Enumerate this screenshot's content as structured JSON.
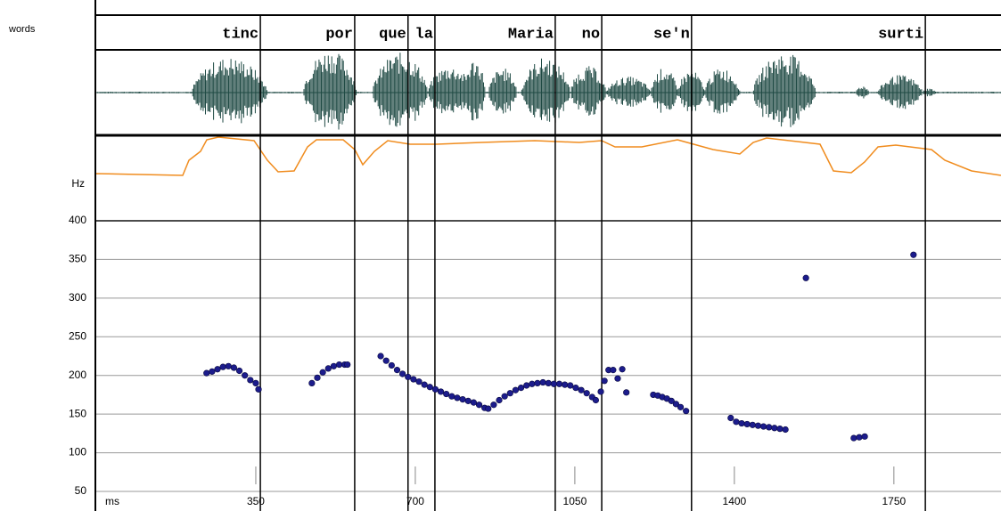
{
  "chart_data": {
    "type": "scatter",
    "tier_label": "words",
    "xlabel": "ms",
    "ylabel": "Hz",
    "words": [
      {
        "label": "tinc",
        "end": 360
      },
      {
        "label": "por",
        "end": 567
      },
      {
        "label": "que",
        "end": 684
      },
      {
        "label": "la",
        "end": 743
      },
      {
        "label": "Maria",
        "end": 1007
      },
      {
        "label": "no",
        "end": 1109
      },
      {
        "label": "se'n",
        "end": 1306
      },
      {
        "label": "surti",
        "end": 1819
      }
    ],
    "x": [
      242,
      254,
      266,
      278,
      290,
      302,
      314,
      326,
      338,
      350,
      356,
      473,
      485,
      497,
      509,
      521,
      533,
      545,
      551,
      624,
      636,
      648,
      660,
      672,
      684,
      696,
      708,
      720,
      732,
      744,
      756,
      768,
      780,
      792,
      804,
      816,
      828,
      840,
      852,
      860,
      872,
      884,
      896,
      908,
      920,
      932,
      944,
      956,
      968,
      980,
      992,
      1004,
      1016,
      1028,
      1040,
      1052,
      1064,
      1076,
      1088,
      1096,
      1107,
      1115,
      1124,
      1134,
      1144,
      1154,
      1163,
      1222,
      1232,
      1242,
      1252,
      1262,
      1272,
      1282,
      1294,
      1392,
      1404,
      1416,
      1428,
      1440,
      1452,
      1464,
      1476,
      1488,
      1500,
      1512,
      1557,
      1662,
      1674,
      1686,
      1793
    ],
    "values": [
      203,
      205,
      208,
      211,
      212,
      210,
      206,
      200,
      194,
      190,
      182,
      190,
      197,
      204,
      209,
      212,
      214,
      214,
      214,
      225,
      219,
      213,
      207,
      202,
      198,
      195,
      192,
      188,
      185,
      182,
      179,
      176,
      173,
      171,
      169,
      167,
      165,
      162,
      158,
      157,
      162,
      168,
      173,
      177,
      181,
      184,
      187,
      189,
      190,
      191,
      190,
      189,
      189,
      188,
      187,
      184,
      181,
      177,
      172,
      168,
      179,
      193,
      207,
      207,
      196,
      208,
      178,
      175,
      174,
      172,
      170,
      167,
      163,
      159,
      154,
      145,
      140,
      138,
      137,
      136,
      135,
      134,
      133,
      132,
      131,
      130,
      326,
      119,
      120,
      121,
      356
    ],
    "color": "#1c1c8c",
    "xlim": [
      0,
      1985
    ],
    "ylim": [
      50,
      400
    ],
    "xticks": [
      350,
      700,
      1050,
      1400,
      1750
    ],
    "yticks": [
      50,
      100,
      150,
      200,
      250,
      300,
      350,
      400
    ],
    "grid": true
  }
}
